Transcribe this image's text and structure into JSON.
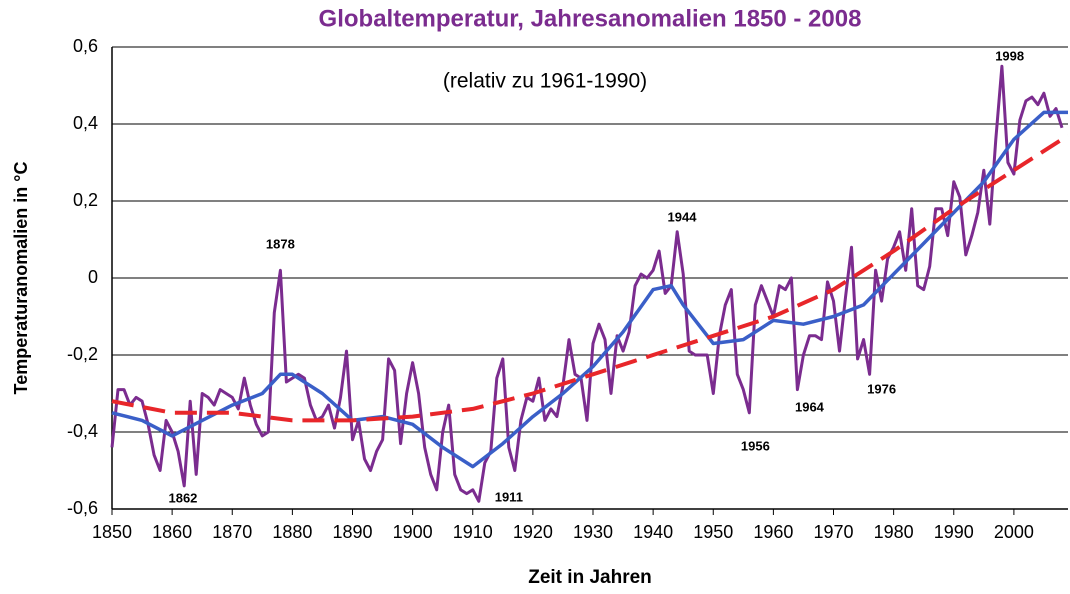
{
  "chart_data": {
    "type": "line",
    "title": "Globaltemperatur, Jahresanomalien 1850 - 2008",
    "subtitle": "(relativ zu 1961-1990)",
    "xlabel": "Zeit in  Jahren",
    "ylabel": "Temperaturanomalien in °C",
    "xlim": [
      1850,
      2009
    ],
    "ylim": [
      -0.6,
      0.6
    ],
    "xticks": [
      1850,
      1860,
      1870,
      1880,
      1890,
      1900,
      1910,
      1920,
      1930,
      1940,
      1950,
      1960,
      1970,
      1980,
      1990,
      2000
    ],
    "yticks": [
      {
        "value": -0.6,
        "label": "-0,6"
      },
      {
        "value": -0.4,
        "label": "-0,4"
      },
      {
        "value": -0.2,
        "label": "-0,2"
      },
      0,
      {
        "value": 0.2,
        "label": "0,2"
      },
      {
        "value": 0.4,
        "label": "0,4"
      },
      {
        "value": 0.6,
        "label": "0,6"
      }
    ],
    "grid": true,
    "series": [
      {
        "color": "#7b2c8f",
        "style": "solid",
        "width": 3,
        "x": [
          1850,
          1851,
          1852,
          1853,
          1854,
          1855,
          1856,
          1857,
          1858,
          1859,
          1860,
          1861,
          1862,
          1863,
          1864,
          1865,
          1866,
          1867,
          1868,
          1869,
          1870,
          1871,
          1872,
          1873,
          1874,
          1875,
          1876,
          1877,
          1878,
          1879,
          1880,
          1881,
          1882,
          1883,
          1884,
          1885,
          1886,
          1887,
          1888,
          1889,
          1890,
          1891,
          1892,
          1893,
          1894,
          1895,
          1896,
          1897,
          1898,
          1899,
          1900,
          1901,
          1902,
          1903,
          1904,
          1905,
          1906,
          1907,
          1908,
          1909,
          1910,
          1911,
          1912,
          1913,
          1914,
          1915,
          1916,
          1917,
          1918,
          1919,
          1920,
          1921,
          1922,
          1923,
          1924,
          1925,
          1926,
          1927,
          1928,
          1929,
          1930,
          1931,
          1932,
          1933,
          1934,
          1935,
          1936,
          1937,
          1938,
          1939,
          1940,
          1941,
          1942,
          1943,
          1944,
          1945,
          1946,
          1947,
          1948,
          1949,
          1950,
          1951,
          1952,
          1953,
          1954,
          1955,
          1956,
          1957,
          1958,
          1959,
          1960,
          1961,
          1962,
          1963,
          1964,
          1965,
          1966,
          1967,
          1968,
          1969,
          1970,
          1971,
          1972,
          1973,
          1974,
          1975,
          1976,
          1977,
          1978,
          1979,
          1980,
          1981,
          1982,
          1983,
          1984,
          1985,
          1986,
          1987,
          1988,
          1989,
          1990,
          1991,
          1992,
          1993,
          1994,
          1995,
          1996,
          1997,
          1998,
          1999,
          2000,
          2001,
          2002,
          2003,
          2004,
          2005,
          2006,
          2007,
          2008
        ],
        "values": [
          -0.44,
          -0.29,
          -0.29,
          -0.33,
          -0.31,
          -0.32,
          -0.38,
          -0.46,
          -0.5,
          -0.37,
          -0.4,
          -0.45,
          -0.54,
          -0.32,
          -0.51,
          -0.3,
          -0.31,
          -0.33,
          -0.29,
          -0.3,
          -0.31,
          -0.34,
          -0.26,
          -0.33,
          -0.38,
          -0.41,
          -0.4,
          -0.09,
          0.02,
          -0.27,
          -0.26,
          -0.25,
          -0.26,
          -0.33,
          -0.37,
          -0.36,
          -0.33,
          -0.39,
          -0.31,
          -0.19,
          -0.42,
          -0.37,
          -0.47,
          -0.5,
          -0.45,
          -0.42,
          -0.21,
          -0.24,
          -0.43,
          -0.3,
          -0.22,
          -0.3,
          -0.44,
          -0.51,
          -0.55,
          -0.4,
          -0.33,
          -0.51,
          -0.55,
          -0.56,
          -0.55,
          -0.58,
          -0.48,
          -0.45,
          -0.26,
          -0.21,
          -0.44,
          -0.5,
          -0.37,
          -0.31,
          -0.32,
          -0.26,
          -0.37,
          -0.34,
          -0.36,
          -0.28,
          -0.16,
          -0.25,
          -0.26,
          -0.37,
          -0.17,
          -0.12,
          -0.16,
          -0.3,
          -0.15,
          -0.19,
          -0.14,
          -0.02,
          0.01,
          0.0,
          0.02,
          0.07,
          -0.04,
          -0.02,
          0.12,
          0.01,
          -0.19,
          -0.2,
          -0.2,
          -0.2,
          -0.3,
          -0.15,
          -0.07,
          -0.03,
          -0.25,
          -0.29,
          -0.35,
          -0.07,
          -0.02,
          -0.06,
          -0.1,
          -0.02,
          -0.03,
          0.0,
          -0.29,
          -0.2,
          -0.15,
          -0.15,
          -0.16,
          -0.01,
          -0.06,
          -0.19,
          -0.05,
          0.08,
          -0.21,
          -0.16,
          -0.25,
          0.02,
          -0.06,
          0.05,
          0.08,
          0.12,
          0.02,
          0.18,
          -0.02,
          -0.03,
          0.03,
          0.18,
          0.18,
          0.11,
          0.25,
          0.21,
          0.06,
          0.11,
          0.17,
          0.28,
          0.14,
          0.36,
          0.55,
          0.3,
          0.27,
          0.41,
          0.46,
          0.47,
          0.45,
          0.48,
          0.42,
          0.44,
          0.39
        ]
      },
      {
        "color": "#3a5fc8",
        "style": "solid",
        "width": 3.5,
        "x": [
          1850,
          1855,
          1860,
          1865,
          1870,
          1875,
          1878,
          1880,
          1885,
          1890,
          1895,
          1900,
          1905,
          1910,
          1915,
          1920,
          1925,
          1930,
          1935,
          1940,
          1943,
          1945,
          1950,
          1955,
          1960,
          1965,
          1970,
          1975,
          1980,
          1985,
          1990,
          1995,
          2000,
          2005,
          2009
        ],
        "values": [
          -0.35,
          -0.37,
          -0.41,
          -0.37,
          -0.33,
          -0.3,
          -0.25,
          -0.25,
          -0.3,
          -0.37,
          -0.36,
          -0.38,
          -0.44,
          -0.49,
          -0.43,
          -0.36,
          -0.3,
          -0.23,
          -0.14,
          -0.03,
          -0.02,
          -0.07,
          -0.17,
          -0.16,
          -0.11,
          -0.12,
          -0.1,
          -0.07,
          0.01,
          0.09,
          0.17,
          0.25,
          0.36,
          0.43,
          0.43
        ]
      },
      {
        "color": "#e8262a",
        "style": "dashed",
        "width": 4,
        "x": [
          1850,
          1860,
          1870,
          1880,
          1890,
          1900,
          1910,
          1920,
          1930,
          1940,
          1950,
          1960,
          1970,
          1980,
          1990,
          2000,
          2009
        ],
        "values": [
          -0.32,
          -0.35,
          -0.35,
          -0.37,
          -0.37,
          -0.36,
          -0.34,
          -0.3,
          -0.25,
          -0.2,
          -0.15,
          -0.1,
          -0.03,
          0.07,
          0.18,
          0.28,
          0.37
        ]
      }
    ],
    "annotations": [
      {
        "text": "1878",
        "x": 1878,
        "y": 0.086
      },
      {
        "text": "1944",
        "x": 1944.8,
        "y": 0.156
      },
      {
        "text": "1998",
        "x": 1999.3,
        "y": 0.574
      },
      {
        "text": "1862",
        "x": 1861.8,
        "y": -0.574
      },
      {
        "text": "1911",
        "x": 1916,
        "y": -0.571
      },
      {
        "text": "1956",
        "x": 1957,
        "y": -0.439
      },
      {
        "text": "1964",
        "x": 1966,
        "y": -0.338
      },
      {
        "text": "1976",
        "x": 1978,
        "y": -0.291
      }
    ]
  }
}
